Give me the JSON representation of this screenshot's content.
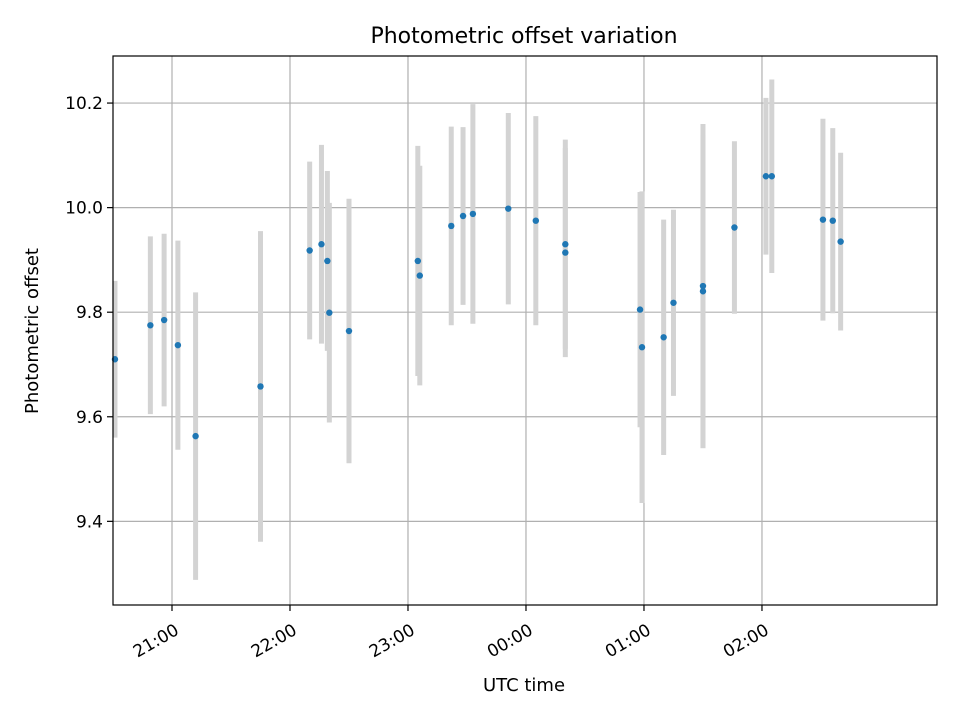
{
  "chart_data": {
    "type": "scatter",
    "title": "Photometric offset variation",
    "xlabel": "UTC time",
    "ylabel": "Photometric offset",
    "grid": true,
    "x_unit": "time (HH:MM, UTC)",
    "xlim": [
      "20:30",
      "03:29"
    ],
    "ylim": [
      9.24,
      10.29
    ],
    "x_ticks": [
      "21:00",
      "22:00",
      "23:00",
      "00:00",
      "01:00",
      "02:00"
    ],
    "y_ticks": [
      "9.4",
      "9.6",
      "9.8",
      "10.0",
      "10.2"
    ],
    "y_tick_values": [
      9.4,
      9.6,
      9.8,
      10.0,
      10.2
    ],
    "colors": {
      "points": "#1f77b4",
      "errorbars": "#d3d3d3",
      "grid": "#b0b0b0"
    },
    "series": [
      {
        "points": [
          {
            "x": "20:31",
            "y": 9.71,
            "err": 0.15
          },
          {
            "x": "20:49",
            "y": 9.775,
            "err": 0.17
          },
          {
            "x": "20:56",
            "y": 9.785,
            "err": 0.165
          },
          {
            "x": "21:03",
            "y": 9.737,
            "err": 0.2
          },
          {
            "x": "21:12",
            "y": 9.563,
            "err": 0.275
          },
          {
            "x": "21:45",
            "y": 9.658,
            "err": 0.297
          },
          {
            "x": "22:10",
            "y": 9.918,
            "err": 0.17
          },
          {
            "x": "22:16",
            "y": 9.93,
            "err": 0.19
          },
          {
            "x": "22:19",
            "y": 9.898,
            "err": 0.172
          },
          {
            "x": "22:20",
            "y": 9.799,
            "err": 0.21
          },
          {
            "x": "22:30",
            "y": 9.764,
            "err": 0.253
          },
          {
            "x": "23:05",
            "y": 9.898,
            "err": 0.22
          },
          {
            "x": "23:06",
            "y": 9.87,
            "err": 0.21
          },
          {
            "x": "23:22",
            "y": 9.965,
            "err": 0.19
          },
          {
            "x": "23:28",
            "y": 9.984,
            "err": 0.17
          },
          {
            "x": "23:33",
            "y": 9.988,
            "err": 0.21
          },
          {
            "x": "23:51",
            "y": 9.998,
            "err": 0.183
          },
          {
            "x": "00:05",
            "y": 9.975,
            "err": 0.2
          },
          {
            "x": "00:20",
            "y": 9.93,
            "err": 0.2
          },
          {
            "x": "00:20",
            "y": 9.914,
            "err": 0.2
          },
          {
            "x": "00:58",
            "y": 9.805,
            "err": 0.225
          },
          {
            "x": "00:59",
            "y": 9.733,
            "err": 0.298
          },
          {
            "x": "01:10",
            "y": 9.752,
            "err": 0.225
          },
          {
            "x": "01:15",
            "y": 9.818,
            "err": 0.178
          },
          {
            "x": "01:30",
            "y": 9.85,
            "err": 0.31
          },
          {
            "x": "01:30",
            "y": 9.84,
            "err": 0.3
          },
          {
            "x": "01:46",
            "y": 9.962,
            "err": 0.165
          },
          {
            "x": "02:02",
            "y": 10.06,
            "err": 0.15
          },
          {
            "x": "02:05",
            "y": 10.06,
            "err": 0.185
          },
          {
            "x": "02:31",
            "y": 9.977,
            "err": 0.193
          },
          {
            "x": "02:36",
            "y": 9.975,
            "err": 0.177
          },
          {
            "x": "02:40",
            "y": 9.935,
            "err": 0.17
          }
        ]
      }
    ]
  }
}
